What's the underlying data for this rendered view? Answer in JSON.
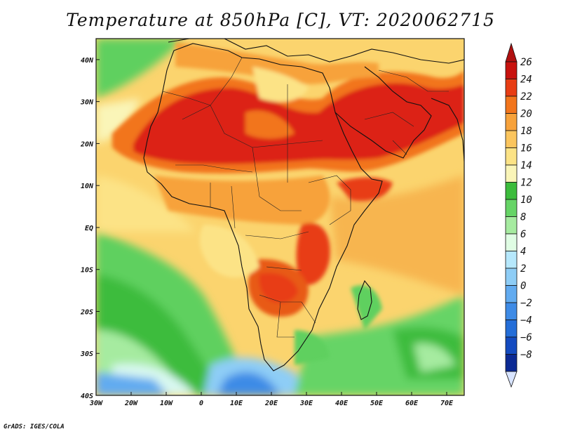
{
  "title": "Temperature at 850hPa [C], VT: 2020062715",
  "credit": "GrADS: IGES/COLA",
  "map": {
    "lon_range": [
      -30,
      75
    ],
    "lat_range": [
      -40,
      45
    ],
    "lon_ticks": [
      {
        "value": -30,
        "label": "30W"
      },
      {
        "value": -20,
        "label": "20W"
      },
      {
        "value": -10,
        "label": "10W"
      },
      {
        "value": 0,
        "label": "0"
      },
      {
        "value": 10,
        "label": "10E"
      },
      {
        "value": 20,
        "label": "20E"
      },
      {
        "value": 30,
        "label": "30E"
      },
      {
        "value": 40,
        "label": "40E"
      },
      {
        "value": 50,
        "label": "50E"
      },
      {
        "value": 60,
        "label": "60E"
      },
      {
        "value": 70,
        "label": "70E"
      }
    ],
    "lat_ticks": [
      {
        "value": 40,
        "label": "40N"
      },
      {
        "value": 30,
        "label": "30N"
      },
      {
        "value": 20,
        "label": "20N"
      },
      {
        "value": 10,
        "label": "10N"
      },
      {
        "value": 0,
        "label": "EQ"
      },
      {
        "value": -10,
        "label": "10S"
      },
      {
        "value": -20,
        "label": "20S"
      },
      {
        "value": -30,
        "label": "30S"
      },
      {
        "value": -40,
        "label": "40S"
      }
    ]
  },
  "colorbar": {
    "levels": [
      {
        "label": "26",
        "color": "#c8120e"
      },
      {
        "label": "24",
        "color": "#e83d14"
      },
      {
        "label": "22",
        "color": "#f2751c"
      },
      {
        "label": "20",
        "color": "#f7a23b"
      },
      {
        "label": "18",
        "color": "#fbc55e"
      },
      {
        "label": "16",
        "color": "#fce386"
      },
      {
        "label": "14",
        "color": "#faf5b8"
      },
      {
        "label": "12",
        "color": "#3cbc3c"
      },
      {
        "label": "10",
        "color": "#66d466"
      },
      {
        "label": "8",
        "color": "#a6eba0"
      },
      {
        "label": "6",
        "color": "#e0fde4"
      },
      {
        "label": "4",
        "color": "#b6e8fc"
      },
      {
        "label": "2",
        "color": "#8ecdf6"
      },
      {
        "label": "0",
        "color": "#62abf0"
      },
      {
        "label": "−2",
        "color": "#3e8be6"
      },
      {
        "label": "−4",
        "color": "#246ed8"
      },
      {
        "label": "−6",
        "color": "#144bc0"
      },
      {
        "label": "−8",
        "color": "#0c2a94"
      }
    ],
    "top_triangle_color": "#b01010",
    "bottom_triangle_color": "#d8e4ff"
  }
}
